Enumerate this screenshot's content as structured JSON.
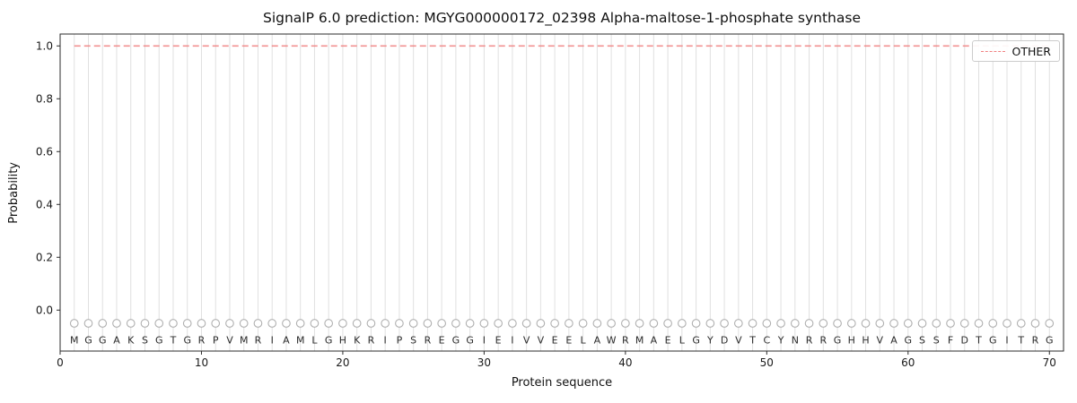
{
  "chart_data": {
    "type": "line",
    "title": "SignalP 6.0 prediction: MGYG000000172_02398 Alpha-maltose-1-phosphate synthase",
    "xlabel": "Protein sequence",
    "ylabel": "Probability",
    "xlim": [
      0,
      71
    ],
    "ylim": [
      -0.155,
      1.045
    ],
    "xticks": [
      0,
      10,
      20,
      30,
      40,
      50,
      60,
      70
    ],
    "yticks": [
      0.0,
      0.2,
      0.4,
      0.6,
      0.8,
      1.0
    ],
    "ytick_labels": [
      "0.0",
      "0.2",
      "0.4",
      "0.6",
      "0.8",
      "1.0"
    ],
    "grid": "vertical gridline at every residue position",
    "grid_color": "#e0e0e0",
    "sequence": "MGGAKSGTGRPVMRIAMLGHKRIPSREGGIEIVVEELAWRMAELGYDVTCYNRRGHHVAGSSFDTGITRG",
    "sequence_length": 70,
    "marker_shape": "open-circle",
    "marker_color": "#b0b0b0",
    "marker_y": -0.05,
    "letter_y": -0.113,
    "letter_color": "#2b2b2b",
    "axes_color": "#2b2b2b",
    "legend": {
      "label": "OTHER",
      "position": "upper right",
      "linestyle": "dashed",
      "color": "#f08080"
    },
    "series": [
      {
        "name": "OTHER",
        "color": "#f08080",
        "linestyle": "dashed",
        "x": [
          1,
          2,
          3,
          4,
          5,
          6,
          7,
          8,
          9,
          10,
          11,
          12,
          13,
          14,
          15,
          16,
          17,
          18,
          19,
          20,
          21,
          22,
          23,
          24,
          25,
          26,
          27,
          28,
          29,
          30,
          31,
          32,
          33,
          34,
          35,
          36,
          37,
          38,
          39,
          40,
          41,
          42,
          43,
          44,
          45,
          46,
          47,
          48,
          49,
          50,
          51,
          52,
          53,
          54,
          55,
          56,
          57,
          58,
          59,
          60,
          61,
          62,
          63,
          64,
          65,
          66,
          67,
          68,
          69,
          70
        ],
        "y": [
          1.0,
          1.0,
          1.0,
          1.0,
          1.0,
          1.0,
          1.0,
          1.0,
          1.0,
          1.0,
          1.0,
          1.0,
          1.0,
          1.0,
          1.0,
          1.0,
          1.0,
          1.0,
          1.0,
          1.0,
          1.0,
          1.0,
          1.0,
          1.0,
          1.0,
          1.0,
          1.0,
          1.0,
          1.0,
          1.0,
          1.0,
          1.0,
          1.0,
          1.0,
          1.0,
          1.0,
          1.0,
          1.0,
          1.0,
          1.0,
          1.0,
          1.0,
          1.0,
          1.0,
          1.0,
          1.0,
          1.0,
          1.0,
          1.0,
          1.0,
          1.0,
          1.0,
          1.0,
          1.0,
          1.0,
          1.0,
          1.0,
          1.0,
          1.0,
          1.0,
          1.0,
          1.0,
          1.0,
          1.0,
          1.0,
          1.0,
          1.0,
          1.0,
          1.0,
          1.0
        ]
      }
    ]
  }
}
